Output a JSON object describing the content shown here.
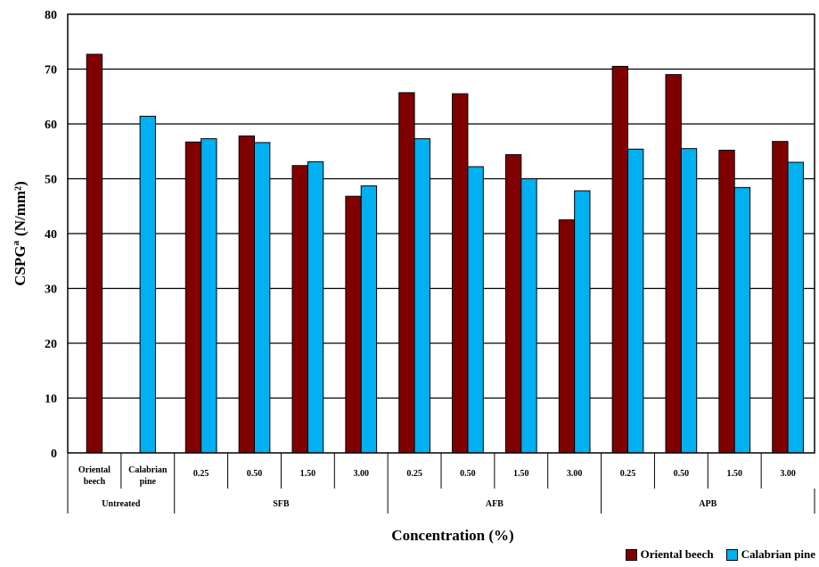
{
  "chart_data": {
    "type": "bar",
    "ylabel": "CSPG",
    "ylabel_superscript": "a",
    "ylabel_unit": "(N/mm²)",
    "xlabel": "Concentration (%)",
    "ylim": [
      0,
      80
    ],
    "yticks": [
      0,
      10,
      20,
      30,
      40,
      50,
      60,
      70,
      80
    ],
    "grid": "horizontal",
    "legend_position": "bottom-right",
    "categories": [
      {
        "label": [
          "Oriental",
          "beech"
        ],
        "group": "Untreated"
      },
      {
        "label": [
          "Calabrian",
          "pine"
        ],
        "group": "Untreated"
      },
      {
        "label": [
          "0.25"
        ],
        "group": "SFB"
      },
      {
        "label": [
          "0.50"
        ],
        "group": "SFB"
      },
      {
        "label": [
          "1.50"
        ],
        "group": "SFB"
      },
      {
        "label": [
          "3.00"
        ],
        "group": "SFB"
      },
      {
        "label": [
          "0.25"
        ],
        "group": "AFB"
      },
      {
        "label": [
          "0.50"
        ],
        "group": "AFB"
      },
      {
        "label": [
          "1.50"
        ],
        "group": "AFB"
      },
      {
        "label": [
          "3.00"
        ],
        "group": "AFB"
      },
      {
        "label": [
          "0.25"
        ],
        "group": "APB"
      },
      {
        "label": [
          "0.50"
        ],
        "group": "APB"
      },
      {
        "label": [
          "1.50"
        ],
        "group": "APB"
      },
      {
        "label": [
          "3.00"
        ],
        "group": "APB"
      }
    ],
    "groups": [
      "Untreated",
      "SFB",
      "AFB",
      "APB"
    ],
    "series": [
      {
        "name": "Oriental beech",
        "color": "#800000",
        "values": [
          72.7,
          null,
          56.7,
          57.8,
          52.4,
          46.8,
          65.7,
          65.5,
          54.4,
          42.5,
          70.5,
          69.0,
          55.2,
          56.8
        ]
      },
      {
        "name": "Calabrian pine",
        "color": "#00b0f0",
        "values": [
          null,
          61.4,
          57.3,
          56.6,
          53.1,
          48.7,
          57.3,
          52.2,
          50.0,
          47.8,
          55.4,
          55.5,
          48.4,
          53.0
        ]
      }
    ]
  }
}
